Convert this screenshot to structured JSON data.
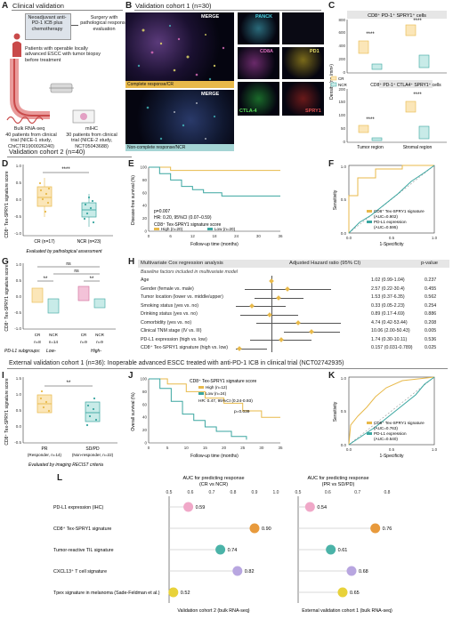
{
  "panelA": {
    "letter": "A",
    "title": "Clinical validation",
    "neoadjuvant": "Neoadjuvant anti-PD-1 ICB plus chemotherapy",
    "surgery": "Surgery with pathological response evaluation",
    "patients": "Patients with operable locally advanced ESCC with tumor biopsy before treatment",
    "bulk_title": "Bulk RNA-seq",
    "bulk_desc": "40 patients from clinical trial (NICE-1 study, ChiCTR1900026240)",
    "mihc_title": "mIHC",
    "mihc_desc": "30 patients from clinical trial (NICE-2 study, NCT05043688)"
  },
  "panelB": {
    "letter": "B",
    "title": "Validation cohort 1 (n=30)",
    "merge1": "MERGE",
    "merge2": "MERGE",
    "cr_label": "Complete response/CR",
    "ncr_label": "Non-complete response/NCR",
    "panck": "PANCK",
    "cd8a": "CD8A",
    "pd1": "PD1",
    "ctla4": "CTLA-4",
    "spry1": "SPRY1"
  },
  "panelC": {
    "letter": "C",
    "top_title": "CD8⁺ PD-1⁺ SPRY1⁺ cells",
    "bottom_title": "CD8⁺ PD-1⁺ CTLA4⁺ SPRY1⁺ cells",
    "ylabel": "Density (no./mm²)",
    "legend_cr": "CR",
    "legend_ncr": "NCR",
    "x1": "Tumor region",
    "x2": "Stromal region",
    "sig": "****",
    "top_ticks": [
      "0",
      "200",
      "400",
      "600",
      "800"
    ],
    "bottom_ticks": [
      "0",
      "50",
      "100",
      "150",
      "200"
    ]
  },
  "cohort2_title": "Validation cohort 2 (n=40)",
  "panelD": {
    "letter": "D",
    "ylabel": "CD8⁺ Tex-SPRY1 signature score",
    "cr": "CR (n=17)",
    "ncr": "NCR (n=23)",
    "sig": "****",
    "caption": "Evaluated by pathological assessment",
    "ticks": [
      "1.0",
      "0.5",
      "0.0",
      "-0.5",
      "-1.0"
    ]
  },
  "panelE": {
    "letter": "E",
    "ylabel": "Disease-free survival (%)",
    "xlabel": "Follow-up time (months)",
    "p": "p=0.007",
    "hr": "HR: 0.20, 95%CI (0.07–0.59)",
    "legend_title": "CD8⁺ Tex-SPRY1 signature score",
    "high": "High (n=20)",
    "low": "Low (n=20)",
    "xticks": [
      "0",
      "6",
      "12",
      "18",
      "24",
      "30",
      "36"
    ],
    "yticks": [
      "0",
      "20",
      "40",
      "60",
      "80",
      "100"
    ]
  },
  "panelF": {
    "letter": "F",
    "ylabel": "Sensitivity",
    "xlabel": "1-Specificity",
    "sig_label": "CD8⁺ Tex-SPRY1 signature",
    "sig_auc": "(AUC=0.902)",
    "pdl1_label": "PD-L1 expression",
    "pdl1_auc": "(AUC=0.595)",
    "ticks": [
      "0.0",
      "0.5",
      "1.0"
    ]
  },
  "panelG": {
    "letter": "G",
    "ylabel": "CD8⁺ Tex-SPRY1 signature score",
    "ns1": "ns",
    "ns2": "ns",
    "sig1": "**",
    "sig2": "**",
    "n_labels": [
      "n=8",
      "n=14",
      "n=9",
      "n=9"
    ],
    "groups": [
      "CR",
      "NCR",
      "CR",
      "NCR"
    ],
    "subgroups": "PD-L1 subgroups:",
    "low": "Low-",
    "high": "High-",
    "ticks": [
      "1.0",
      "0.5",
      "0.0",
      "-0.5",
      "-1.0"
    ]
  },
  "panelH": {
    "letter": "H",
    "header1": "Multivariate Cox regression analysis",
    "header2": "Adjusted Hazard ratio (95% CI)",
    "header3": "p-value",
    "subheader": "Baseline factors included in multivariate model",
    "rows": [
      {
        "name": "Age",
        "hr": "1.02 (0.99-1.04)",
        "p": "0.237"
      },
      {
        "name": "Gender (female vs. male)",
        "hr": "2.57 (0.22-30.4)",
        "p": "0.455"
      },
      {
        "name": "Tumor location (lower vs. middle/upper)",
        "hr": "1.53 (0.37-6.35)",
        "p": "0.562"
      },
      {
        "name": "Smoking status (yes vs. no)",
        "hr": "0.33 (0.05-2.23)",
        "p": "0.254"
      },
      {
        "name": "Drinking status (yes vs. no)",
        "hr": "0.89 (0.17-4.69)",
        "p": "0.886"
      },
      {
        "name": "Comorbidity (yes vs. no)",
        "hr": "4.74 (0.42-53.44)",
        "p": "0.208"
      },
      {
        "name": "Clinical TNM stage (IV vs. III)",
        "hr": "10.06 (2.00-50.43)",
        "p": "0.005"
      },
      {
        "name": "PD-L1 expression (high vs. low)",
        "hr": "1.74 (0.30-10.11)",
        "p": "0.536"
      },
      {
        "name": "CD8⁺ Tex-SPRY1 signature (high vs. low)",
        "hr": "0.157 (0.031-0.789)",
        "p": "0.025"
      }
    ]
  },
  "ext_title": "External validation cohort 1 (n=36):  Inoperable advanced ESCC treated with anti-PD-1 ICB in clinical trial (NCT02742935)",
  "panelI": {
    "letter": "I",
    "ylabel": "CD8⁺ Tex-SPRY1 signature score",
    "pr": "PR",
    "pr_n": "(Responder, n=14)",
    "sdpd": "SD/PD",
    "sdpd_n": "(Non-responder, n=22)",
    "sig": "**",
    "caption": "Evaluated by imaging RECIST criteria",
    "ticks": [
      "1.5",
      "1.0",
      "0.5",
      "0.0",
      "-0.5"
    ]
  },
  "panelJ": {
    "letter": "J",
    "ylabel": "Overall survival (%)",
    "xlabel": "Follow-up time (months)",
    "legend_title": "CD8⁺ Tex-SPRY1 signature score",
    "high": "High (n=12)",
    "low": "Low (n=24)",
    "hr": "HR: 0.47, 95%CI (0.24-0.93)",
    "p": "p=0.039",
    "xticks": [
      "0",
      "5",
      "10",
      "15",
      "20",
      "25",
      "30",
      "35"
    ],
    "yticks": [
      "0",
      "20",
      "40",
      "60",
      "80",
      "100"
    ]
  },
  "panelK": {
    "letter": "K",
    "ylabel": "Sensitivity",
    "xlabel": "1-Specificity",
    "sig_label": "CD8⁺ Tex-SPRY1 signature",
    "sig_auc": "(AUC=0.763)",
    "pdl1_label": "PD-L1 expression",
    "pdl1_auc": "(AUC=0.540)",
    "ticks": [
      "0.0",
      "0.5",
      "1.0"
    ]
  },
  "panelL": {
    "letter": "L",
    "left_title1": "AUC for predicting response",
    "left_title2": "(CR vs NCR)",
    "right_title1": "AUC for predicting response",
    "right_title2": "(PR vs SD/PD)",
    "left_caption": "Validation cohort 2 (bulk RNA-seq)",
    "right_caption": "External validation cohort 1 (bulk RNA-seq)",
    "left_ticks": [
      "0.5",
      "0.6",
      "0.7",
      "0.8",
      "0.9",
      "1.0"
    ],
    "right_ticks": [
      "0.5",
      "0.6",
      "0.7",
      "0.8"
    ],
    "rows": [
      "PD-L1 expression (IHC)",
      "CD8⁺ Tex-SPRY1 signature",
      "Tumor-reactive TIL signature",
      "CXCL13⁺ T cell signature",
      "Tpex signature in melanoma (Sade-Feldman et al.)"
    ],
    "left_vals": [
      "0.59",
      "0.90",
      "0.74",
      "0.82",
      "0.52"
    ],
    "right_vals": [
      "0.54",
      "0.76",
      "0.61",
      "0.68",
      "0.65"
    ]
  },
  "colors": {
    "cr": "#e8b94a",
    "ncr": "#3aa6a0",
    "pink": "#f0a8c8",
    "orange": "#e89a3c",
    "teal": "#4bb3a8",
    "lavender": "#b8a6e0",
    "yellow": "#e8d23a"
  },
  "chart_data": [
    {
      "type": "line",
      "title": "",
      "xlabel": "Follow-up time (months)",
      "ylabel": "Disease-free survival (%)",
      "series": [
        {
          "name": "High (n=20)",
          "x": [
            0,
            2,
            6,
            10,
            14,
            36
          ],
          "y": [
            100,
            100,
            95,
            95,
            95,
            95
          ]
        },
        {
          "name": "Low (n=20)",
          "x": [
            0,
            3,
            6,
            9,
            12,
            15,
            20,
            36
          ],
          "y": [
            100,
            90,
            80,
            70,
            65,
            60,
            55,
            55
          ]
        }
      ],
      "xlim": [
        0,
        36
      ],
      "ylim": [
        0,
        100
      ]
    },
    {
      "type": "line",
      "title": "",
      "xlabel": "Follow-up time (months)",
      "ylabel": "Overall survival (%)",
      "series": [
        {
          "name": "High (n=12)",
          "x": [
            0,
            5,
            10,
            15,
            20,
            25,
            30,
            35
          ],
          "y": [
            100,
            92,
            80,
            70,
            62,
            50,
            40,
            40
          ]
        },
        {
          "name": "Low (n=24)",
          "x": [
            0,
            3,
            6,
            9,
            12,
            15,
            18,
            22,
            26
          ],
          "y": [
            100,
            85,
            65,
            45,
            35,
            25,
            18,
            10,
            5
          ]
        }
      ],
      "xlim": [
        0,
        35
      ],
      "ylim": [
        0,
        100
      ]
    },
    {
      "type": "scatter",
      "title": "",
      "xlabel": "",
      "ylabel": "",
      "categories": [
        "PD-L1 expression (IHC)",
        "CD8⁺ Tex-SPRY1 signature",
        "Tumor-reactive TIL signature",
        "CXCL13⁺ T cell signature",
        "Tpex signature in melanoma (Sade-Feldman et al.)"
      ],
      "series": [
        {
          "name": "",
          "values": [
            0.59,
            0.9,
            0.74,
            0.82,
            0.52
          ]
        },
        {
          "name": "",
          "values": [
            0.54,
            0.76,
            0.61,
            0.68,
            0.65
          ]
        }
      ]
    }
  ]
}
